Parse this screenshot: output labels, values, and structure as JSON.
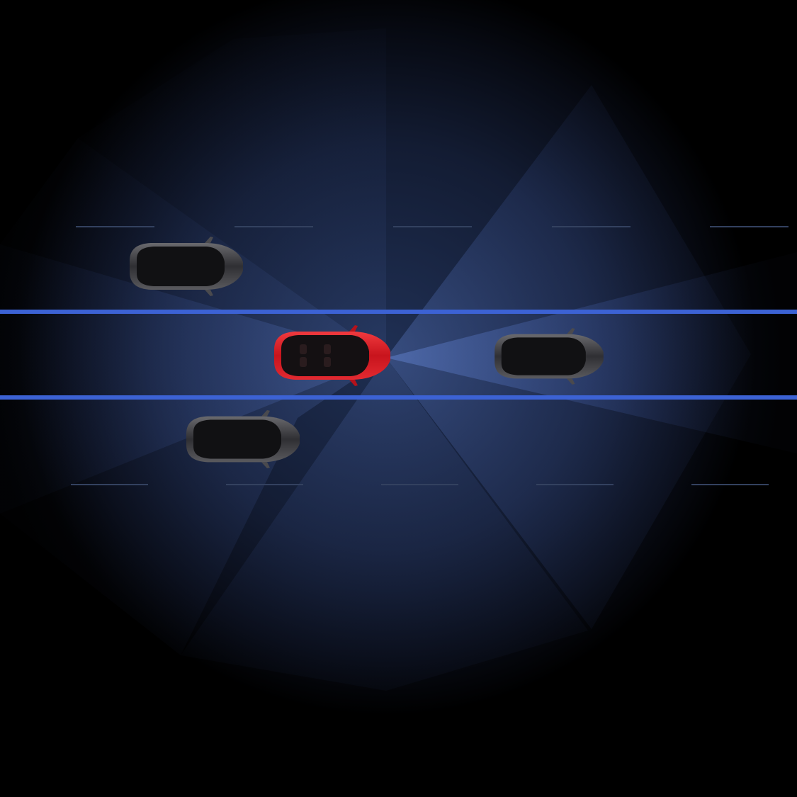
{
  "scene": {
    "view": "top-down",
    "background_color": "#000000",
    "glow_color": "#1e2e52",
    "sensor_color": "#5a7fd6",
    "lane_line_color": "#3f66d8",
    "dashed_line_color": "#2e3b57",
    "ego_vehicle": {
      "name": "ego-car",
      "color": "#d41f2a",
      "heading": "right"
    },
    "other_vehicles": [
      {
        "name": "car-upper-left",
        "color": "#2a2a2c",
        "heading": "right"
      },
      {
        "name": "car-ahead",
        "color": "#2a2a2c",
        "heading": "right"
      },
      {
        "name": "car-lower-left",
        "color": "#2a2a2c",
        "heading": "right"
      }
    ],
    "sensor_zones": [
      "front-wide",
      "front-narrow",
      "rear-wide",
      "rear-narrow",
      "side-lower",
      "side-upper"
    ]
  }
}
